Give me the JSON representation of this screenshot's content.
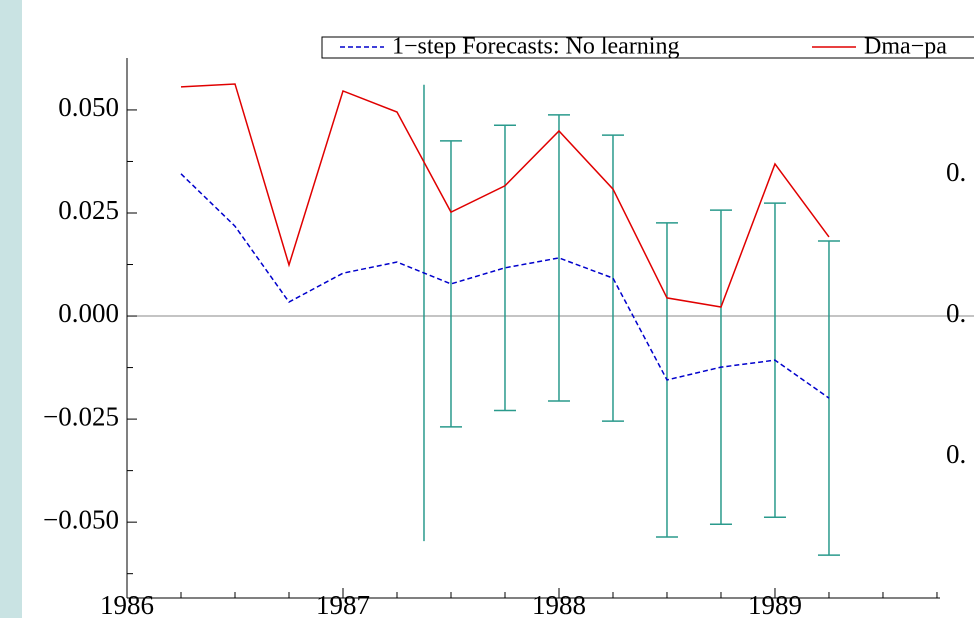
{
  "chart_data": {
    "type": "line",
    "x": [
      1986.25,
      1986.5,
      1986.75,
      1987,
      1987.25,
      1987.5,
      1987.75,
      1988,
      1988.25,
      1988.5,
      1988.75,
      1989,
      1989.25
    ],
    "series": [
      {
        "name": "1−step Forecasts: No learning",
        "color": "#0000cc",
        "dash": true,
        "values": [
          0.0345,
          0.0218,
          0.0034,
          0.0104,
          0.0131,
          0.0078,
          0.0117,
          0.0141,
          0.0092,
          -0.0155,
          -0.0124,
          -0.0107,
          -0.0199
        ],
        "errors": [
          null,
          null,
          null,
          null,
          null,
          0.0347,
          0.0346,
          0.0347,
          0.0347,
          0.0381,
          0.0381,
          0.0381,
          0.0381
        ],
        "error_color": "#2a9a8c"
      },
      {
        "name": "Dma−pa",
        "color": "#e00000",
        "dash": false,
        "values": [
          0.0556,
          0.0563,
          0.0124,
          0.0546,
          0.0495,
          0.0252,
          0.0316,
          0.0449,
          0.0308,
          0.0044,
          0.0022,
          0.0369,
          0.0192
        ]
      }
    ],
    "vline": {
      "x": 1987.375,
      "y": [
        -0.0546,
        0.0561
      ],
      "color": "#2a9a8c"
    },
    "xlim": [
      1986,
      1989.764
    ],
    "xticks": [
      1986,
      1987,
      1988,
      1989
    ],
    "xminorticks": [
      1986.25,
      1986.5,
      1986.75,
      1987.25,
      1987.5,
      1987.75,
      1988.25,
      1988.5,
      1988.75,
      1989.25,
      1989.5,
      1989.75
    ],
    "ylim": [
      -0.0684,
      0.0626
    ],
    "yticks": [
      {
        "value": 0.05,
        "label": "0.050"
      },
      {
        "value": 0.025,
        "label": "0.025"
      },
      {
        "value": 0,
        "label": "0.000"
      },
      {
        "value": -0.025,
        "label": "−0.025"
      },
      {
        "value": -0.05,
        "label": "−0.050"
      }
    ],
    "yminorticks": [
      0.0375,
      0.0125,
      -0.0125,
      -0.0375,
      -0.0625
    ],
    "zero_line": true,
    "right_labels": [
      "0.",
      "0.",
      "0."
    ]
  }
}
